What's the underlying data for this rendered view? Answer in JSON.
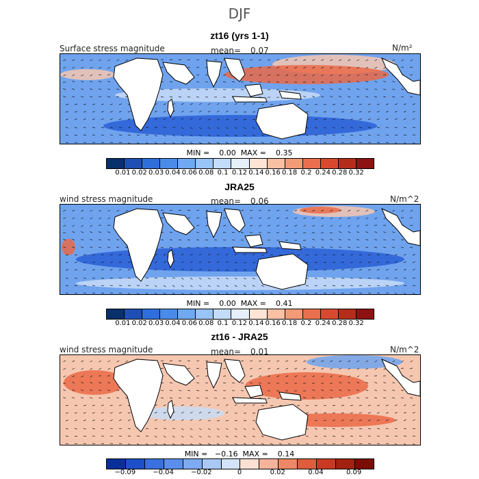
{
  "title": "DJF",
  "colors": {
    "ocean_low": "#2a5fd6",
    "ocean_mid": "#6fa3ee",
    "ocean_light": "#c8dcf7",
    "warm_low": "#f6c7b0",
    "warm_mid": "#ea6a48",
    "land": "#ffffff",
    "coast": "#000000"
  },
  "colorbar_seq": [
    "#08306b",
    "#1f4fb4",
    "#2f6fdc",
    "#4a8bea",
    "#6fa8f3",
    "#98c4f7",
    "#c3dcf9",
    "#e6f0fb",
    "#fde4d4",
    "#f9c0a4",
    "#f39a77",
    "#ea6f4e",
    "#d84a30",
    "#b42d1b",
    "#8e1212"
  ],
  "colorbar_div": [
    "#0a2f9a",
    "#1f4fc8",
    "#3a70df",
    "#5a8eea",
    "#7eaaf1",
    "#a9c8f6",
    "#d4e3fa",
    "#fbe0d3",
    "#f5b49a",
    "#ec8866",
    "#df5d3d",
    "#c73b22",
    "#a3210f",
    "#7a0e04"
  ],
  "panels": [
    {
      "title": "zt16 (yrs 1-1)",
      "left_label": "Surface stress magnitude",
      "mean_label": "mean=",
      "mean_value": "0.07",
      "units": "N/m²",
      "minmax": "MIN =    0.00  MAX =    0.35",
      "scale": "seq",
      "ticks": [
        "0.01",
        "0.02",
        "0.03",
        "0.04",
        "0.06",
        "0.08",
        "0.1",
        "0.12",
        "0.14",
        "0.16",
        "0.18",
        "0.2",
        "0.24",
        "0.28",
        "0.32"
      ]
    },
    {
      "title": "JRA25",
      "left_label": "wind stress magnitude",
      "mean_label": "mean=",
      "mean_value": "0.06",
      "units": "N/m^2",
      "minmax": "MIN =    0.00  MAX =    0.41",
      "scale": "seq",
      "ticks": [
        "0.01",
        "0.02",
        "0.03",
        "0.04",
        "0.06",
        "0.08",
        "0.1",
        "0.12",
        "0.14",
        "0.16",
        "0.18",
        "0.2",
        "0.24",
        "0.28",
        "0.32"
      ]
    },
    {
      "title": "zt16 - JRA25",
      "left_label": "wind stress magnitude",
      "mean_label": "mean=",
      "mean_value": "0.01",
      "units": "N/m^2",
      "minmax": "MIN =   −0.16  MAX =    0.14",
      "scale": "div",
      "ticks": [
        "−0.09",
        "−0.04",
        "−0.02",
        "0",
        "0.02",
        "0.04",
        "0.09"
      ]
    }
  ]
}
